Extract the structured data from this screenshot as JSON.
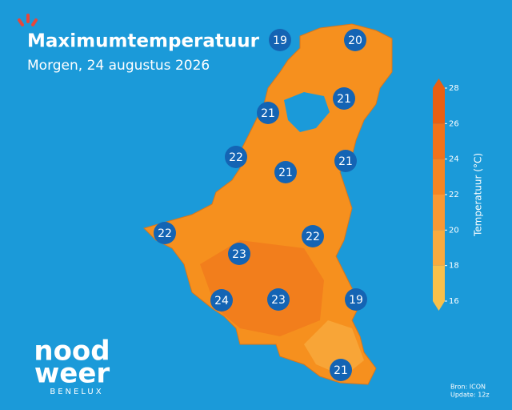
{
  "header": {
    "title": "Maximumtemperatuur",
    "subtitle": "Morgen, 24 augustus 2026"
  },
  "markers": [
    19,
    20,
    21,
    21,
    22,
    21,
    21,
    22,
    22,
    23,
    24,
    23,
    19,
    21
  ],
  "colorbar": {
    "label": "Temperatuur (°C)",
    "lim": [
      16,
      28
    ],
    "ticks": [
      16,
      18,
      20,
      22,
      24,
      26,
      28
    ],
    "colors": [
      "#f8c04a",
      "#f9aa3e",
      "#f89833",
      "#f58522",
      "#f1721a",
      "#ea5f12"
    ]
  },
  "logo": {
    "line1": "nood",
    "line2": "weer",
    "line3": "BENELUX"
  },
  "footer": {
    "source": "Bron: ICON",
    "update": "Update: 12z"
  }
}
